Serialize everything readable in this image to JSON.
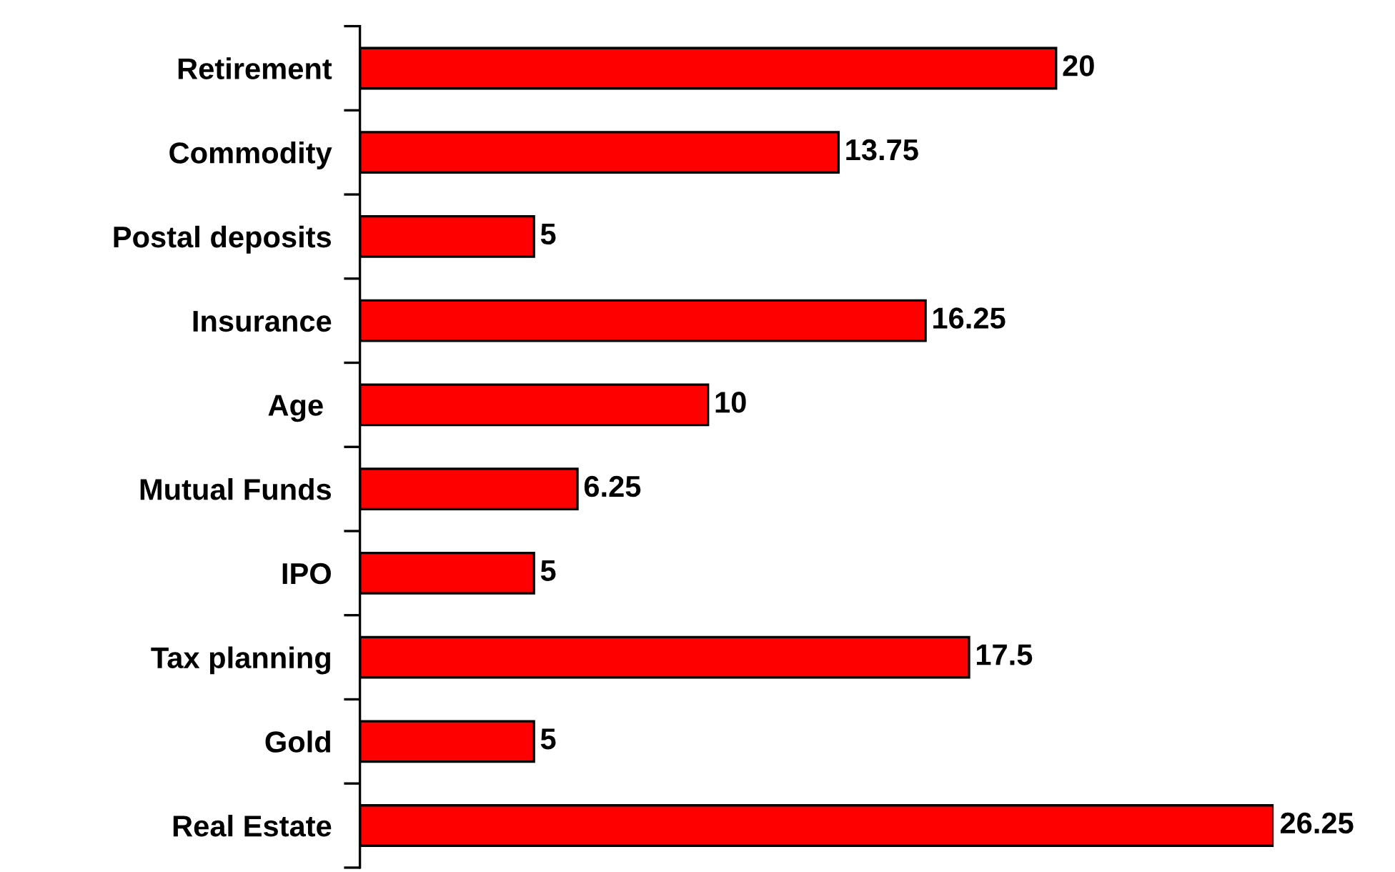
{
  "chart_data": {
    "type": "bar",
    "orientation": "horizontal",
    "categories": [
      "Retirement",
      "Commodity",
      "Postal deposits",
      "Insurance",
      "Age ",
      "Mutual Funds",
      "IPO",
      "Tax planning",
      "Gold",
      "Real Estate"
    ],
    "values": [
      20,
      13.75,
      5,
      16.25,
      10,
      6.25,
      5,
      17.5,
      5,
      26.25
    ],
    "value_labels": [
      "20",
      "13.75",
      "5",
      "16.25",
      "10",
      "6.25",
      "5",
      "17.5",
      "5",
      "26.25"
    ],
    "color": "#ff0000"
  }
}
